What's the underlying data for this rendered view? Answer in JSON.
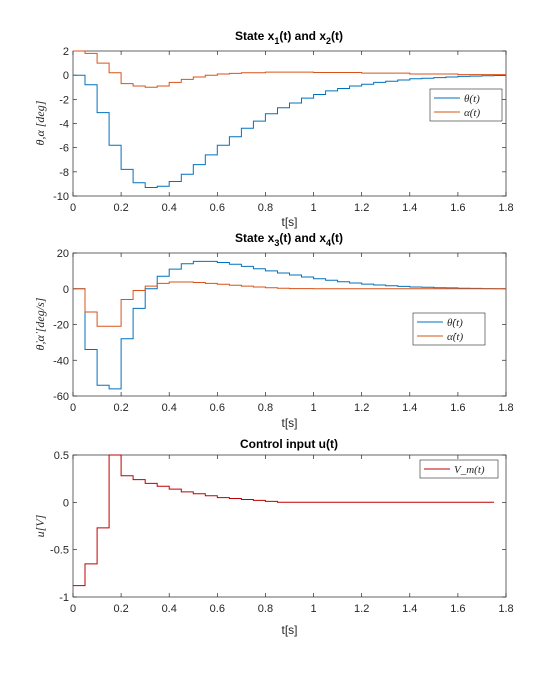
{
  "figure": {
    "panels": [
      {
        "title_main": "State x",
        "title_sub1": "1",
        "title_mid": "(t) and x",
        "title_sub2": "2",
        "title_end": "(t)"
      },
      {
        "title_main": "State x",
        "title_sub1": "3",
        "title_mid": "(t) and x",
        "title_sub2": "4",
        "title_end": "(t)"
      },
      {
        "title_main": "Control input u(t)"
      }
    ]
  },
  "chart_data": [
    {
      "type": "line",
      "step": true,
      "title": "State x1(t) and x2(t)",
      "xlabel": "t[s]",
      "ylabel": "θ,α [deg]",
      "xlim": [
        0,
        1.8
      ],
      "ylim": [
        -10,
        2
      ],
      "xticks": [
        "0",
        "0.2",
        "0.4",
        "0.6",
        "0.8",
        "1",
        "1.2",
        "1.4",
        "1.6",
        "1.8"
      ],
      "yticks": [
        "2",
        "0",
        "-2",
        "-4",
        "-6",
        "-8",
        "-10"
      ],
      "legend_position": "right",
      "series": [
        {
          "name": "θ(t)",
          "color": "#0072BD",
          "x": [
            0,
            0.05,
            0.1,
            0.15,
            0.2,
            0.25,
            0.3,
            0.35,
            0.4,
            0.45,
            0.5,
            0.55,
            0.6,
            0.65,
            0.7,
            0.75,
            0.8,
            0.85,
            0.9,
            0.95,
            1.0,
            1.05,
            1.1,
            1.15,
            1.2,
            1.25,
            1.3,
            1.35,
            1.4,
            1.45,
            1.5,
            1.55,
            1.6,
            1.65,
            1.7,
            1.75,
            1.8
          ],
          "y": [
            0,
            -0.8,
            -3.1,
            -5.8,
            -7.8,
            -8.9,
            -9.3,
            -9.2,
            -8.8,
            -8.2,
            -7.4,
            -6.6,
            -5.8,
            -5.1,
            -4.4,
            -3.8,
            -3.2,
            -2.7,
            -2.3,
            -1.9,
            -1.6,
            -1.3,
            -1.1,
            -0.9,
            -0.75,
            -0.6,
            -0.5,
            -0.4,
            -0.3,
            -0.25,
            -0.2,
            -0.15,
            -0.1,
            -0.08,
            -0.05,
            -0.03,
            -0.03
          ]
        },
        {
          "name": "α(t)",
          "color": "#D95319",
          "x": [
            0,
            0.05,
            0.1,
            0.15,
            0.2,
            0.25,
            0.3,
            0.35,
            0.4,
            0.45,
            0.5,
            0.55,
            0.6,
            0.65,
            0.7,
            0.8,
            0.9,
            1.0,
            1.2,
            1.4,
            1.6,
            1.8
          ],
          "y": [
            2,
            1.8,
            1.0,
            0.2,
            -0.7,
            -0.9,
            -1.0,
            -0.9,
            -0.6,
            -0.35,
            -0.15,
            0.0,
            0.1,
            0.15,
            0.2,
            0.25,
            0.25,
            0.22,
            0.17,
            0.1,
            0.05,
            0.0
          ]
        }
      ]
    },
    {
      "type": "line",
      "step": true,
      "title": "State x3(t) and x4(t)",
      "xlabel": "t[s]",
      "ylabel": "θ̇,α̇ [deg/s]",
      "xlim": [
        0,
        1.8
      ],
      "ylim": [
        -60,
        20
      ],
      "xticks": [
        "0",
        "0.2",
        "0.4",
        "0.6",
        "0.8",
        "1",
        "1.2",
        "1.4",
        "1.6",
        "1.8"
      ],
      "yticks": [
        "20",
        "0",
        "-20",
        "-40",
        "-60"
      ],
      "legend_position": "right",
      "series": [
        {
          "name": "θ̇(t)",
          "color": "#0072BD",
          "x": [
            0,
            0.05,
            0.1,
            0.15,
            0.2,
            0.25,
            0.3,
            0.35,
            0.4,
            0.45,
            0.5,
            0.55,
            0.6,
            0.65,
            0.7,
            0.75,
            0.8,
            0.85,
            0.9,
            0.95,
            1.0,
            1.05,
            1.1,
            1.15,
            1.2,
            1.25,
            1.3,
            1.35,
            1.4,
            1.45,
            1.5,
            1.55,
            1.6,
            1.65,
            1.7,
            1.75,
            1.8
          ],
          "y": [
            0,
            -34,
            -54,
            -56,
            -28,
            -11,
            0,
            7,
            11,
            14,
            15.3,
            15.3,
            14.7,
            13.7,
            12.5,
            11.2,
            10,
            8.8,
            7.7,
            6.6,
            5.6,
            4.7,
            3.9,
            3.2,
            2.6,
            2.1,
            1.7,
            1.3,
            1,
            0.8,
            0.6,
            0.45,
            0.3,
            0.2,
            0.1,
            0.05,
            0.05
          ]
        },
        {
          "name": "α̇(t)",
          "color": "#D95319",
          "x": [
            0,
            0.05,
            0.1,
            0.15,
            0.2,
            0.25,
            0.3,
            0.35,
            0.4,
            0.45,
            0.5,
            0.55,
            0.6,
            0.65,
            0.7,
            0.75,
            0.8,
            0.85,
            0.9,
            1.0,
            1.2,
            1.4,
            1.6,
            1.8
          ],
          "y": [
            0,
            -13,
            -21,
            -21,
            -6,
            -1,
            1.5,
            3,
            3.8,
            3.8,
            3.5,
            3,
            2.5,
            2,
            1.5,
            1,
            0.6,
            0.3,
            0.1,
            0,
            0,
            0,
            0,
            0
          ]
        }
      ]
    },
    {
      "type": "line",
      "step": true,
      "title": "Control input u(t)",
      "xlabel": "t[s]",
      "ylabel": "u[V]",
      "xlim": [
        0,
        1.8
      ],
      "ylim": [
        -1,
        0.5
      ],
      "xticks": [
        "0",
        "0.2",
        "0.4",
        "0.6",
        "0.8",
        "1",
        "1.2",
        "1.4",
        "1.6",
        "1.8"
      ],
      "yticks": [
        "0.5",
        "0",
        "-0.5",
        "-1"
      ],
      "legend_position": "top-right",
      "series": [
        {
          "name": "V_m(t)",
          "color": "#C00000",
          "x": [
            0,
            0.05,
            0.1,
            0.15,
            0.2,
            0.25,
            0.3,
            0.35,
            0.4,
            0.45,
            0.5,
            0.55,
            0.6,
            0.65,
            0.7,
            0.75,
            0.8,
            0.85,
            0.9,
            1.0,
            1.2,
            1.4,
            1.6,
            1.75
          ],
          "y": [
            -0.88,
            -0.65,
            -0.27,
            0.6,
            0.28,
            0.24,
            0.2,
            0.17,
            0.14,
            0.11,
            0.09,
            0.07,
            0.05,
            0.04,
            0.03,
            0.02,
            0.01,
            0.0,
            0.0,
            0.0,
            0.0,
            0.0,
            0.0,
            0.0
          ]
        }
      ]
    }
  ]
}
